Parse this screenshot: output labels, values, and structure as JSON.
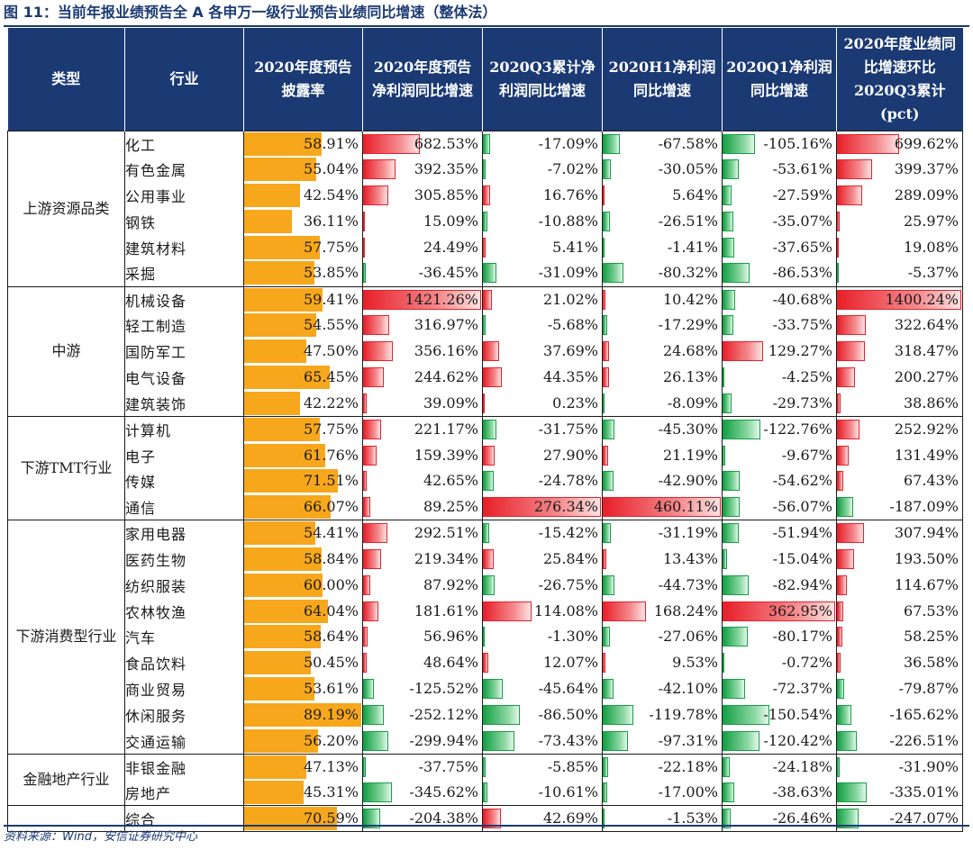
{
  "title": "图 11：当前年报业绩预告全 A 各申万一级行业预告业绩同比增速（整体法）",
  "source": "资料来源：Wind，安信证券研究中心",
  "colors": {
    "header_bg": "#1b3a74",
    "disclosure_bar": "#f7a71c",
    "positive_bar": "#e8202a",
    "negative_bar": "#15a045"
  },
  "chart_data": {
    "type": "table",
    "title": "当前年报业绩预告全 A 各申万一级行业预告业绩同比增速（整体法）",
    "columns": [
      "类型",
      "行业",
      "2020年度预告披露率",
      "2020年度预告净利润同比增速",
      "2020Q3累计净利润同比增速",
      "2020H1净利润同比增速",
      "2020Q1净利润同比增速",
      "2020年度业绩同比增速环比2020Q3累计(pct)"
    ],
    "groups": [
      {
        "type": "上游资源品类",
        "rows": [
          {
            "industry": "化工",
            "values": [
              "58.91%",
              "682.53%",
              "-17.09%",
              "-67.58%",
              "-105.16%",
              "699.62%"
            ]
          },
          {
            "industry": "有色金属",
            "values": [
              "55.04%",
              "392.35%",
              "-7.02%",
              "-30.05%",
              "-53.61%",
              "399.37%"
            ]
          },
          {
            "industry": "公用事业",
            "values": [
              "42.54%",
              "305.85%",
              "16.76%",
              "5.64%",
              "-27.59%",
              "289.09%"
            ]
          },
          {
            "industry": "钢铁",
            "values": [
              "36.11%",
              "15.09%",
              "-10.88%",
              "-26.51%",
              "-35.07%",
              "25.97%"
            ]
          },
          {
            "industry": "建筑材料",
            "values": [
              "57.75%",
              "24.49%",
              "5.41%",
              "-1.41%",
              "-37.65%",
              "19.08%"
            ]
          },
          {
            "industry": "采掘",
            "values": [
              "53.85%",
              "-36.45%",
              "-31.09%",
              "-80.32%",
              "-86.53%",
              "-5.37%"
            ]
          }
        ]
      },
      {
        "type": "中游",
        "rows": [
          {
            "industry": "机械设备",
            "values": [
              "59.41%",
              "1421.26%",
              "21.02%",
              "10.42%",
              "-40.68%",
              "1400.24%"
            ]
          },
          {
            "industry": "轻工制造",
            "values": [
              "54.55%",
              "316.97%",
              "-5.68%",
              "-17.29%",
              "-33.75%",
              "322.64%"
            ]
          },
          {
            "industry": "国防军工",
            "values": [
              "47.50%",
              "356.16%",
              "37.69%",
              "24.68%",
              "129.27%",
              "318.47%"
            ]
          },
          {
            "industry": "电气设备",
            "values": [
              "65.45%",
              "244.62%",
              "44.35%",
              "26.13%",
              "-4.25%",
              "200.27%"
            ]
          },
          {
            "industry": "建筑装饰",
            "values": [
              "42.22%",
              "39.09%",
              "0.23%",
              "-8.09%",
              "-29.73%",
              "38.86%"
            ]
          }
        ]
      },
      {
        "type": "下游TMT行业",
        "rows": [
          {
            "industry": "计算机",
            "values": [
              "57.75%",
              "221.17%",
              "-31.75%",
              "-45.30%",
              "-122.76%",
              "252.92%"
            ]
          },
          {
            "industry": "电子",
            "values": [
              "61.76%",
              "159.39%",
              "27.90%",
              "21.19%",
              "-9.67%",
              "131.49%"
            ]
          },
          {
            "industry": "传媒",
            "values": [
              "71.51%",
              "42.65%",
              "-24.78%",
              "-42.90%",
              "-54.62%",
              "67.43%"
            ]
          },
          {
            "industry": "通信",
            "values": [
              "66.07%",
              "89.25%",
              "276.34%",
              "460.11%",
              "-56.07%",
              "-187.09%"
            ]
          }
        ]
      },
      {
        "type": "下游消费型行业",
        "rows": [
          {
            "industry": "家用电器",
            "values": [
              "54.41%",
              "292.51%",
              "-15.42%",
              "-31.19%",
              "-51.94%",
              "307.94%"
            ]
          },
          {
            "industry": "医药生物",
            "values": [
              "58.84%",
              "219.34%",
              "25.84%",
              "13.43%",
              "-15.04%",
              "193.50%"
            ]
          },
          {
            "industry": "纺织服装",
            "values": [
              "60.00%",
              "87.92%",
              "-26.75%",
              "-44.73%",
              "-82.94%",
              "114.67%"
            ]
          },
          {
            "industry": "农林牧渔",
            "values": [
              "64.04%",
              "181.61%",
              "114.08%",
              "168.24%",
              "362.95%",
              "67.53%"
            ]
          },
          {
            "industry": "汽车",
            "values": [
              "58.64%",
              "56.96%",
              "-1.30%",
              "-27.06%",
              "-80.17%",
              "58.25%"
            ]
          },
          {
            "industry": "食品饮料",
            "values": [
              "50.45%",
              "48.64%",
              "12.07%",
              "9.53%",
              "-0.72%",
              "36.58%"
            ]
          },
          {
            "industry": "商业贸易",
            "values": [
              "53.61%",
              "-125.52%",
              "-45.64%",
              "-42.10%",
              "-72.37%",
              "-79.87%"
            ]
          },
          {
            "industry": "休闲服务",
            "values": [
              "89.19%",
              "-252.12%",
              "-86.50%",
              "-119.78%",
              "-150.54%",
              "-165.62%"
            ]
          },
          {
            "industry": "交通运输",
            "values": [
              "56.20%",
              "-299.94%",
              "-73.43%",
              "-97.31%",
              "-120.42%",
              "-226.51%"
            ]
          }
        ]
      },
      {
        "type": "金融地产行业",
        "rows": [
          {
            "industry": "非银金融",
            "values": [
              "47.13%",
              "-37.75%",
              "-5.85%",
              "-22.18%",
              "-24.18%",
              "-31.90%"
            ]
          },
          {
            "industry": "房地产",
            "values": [
              "45.31%",
              "-345.62%",
              "-10.61%",
              "-17.00%",
              "-38.63%",
              "-335.01%"
            ]
          }
        ]
      },
      {
        "type": "",
        "rows": [
          {
            "industry": "综合",
            "values": [
              "70.59%",
              "-204.38%",
              "42.69%",
              "-1.53%",
              "-26.46%",
              "-247.07%"
            ]
          }
        ]
      }
    ]
  }
}
